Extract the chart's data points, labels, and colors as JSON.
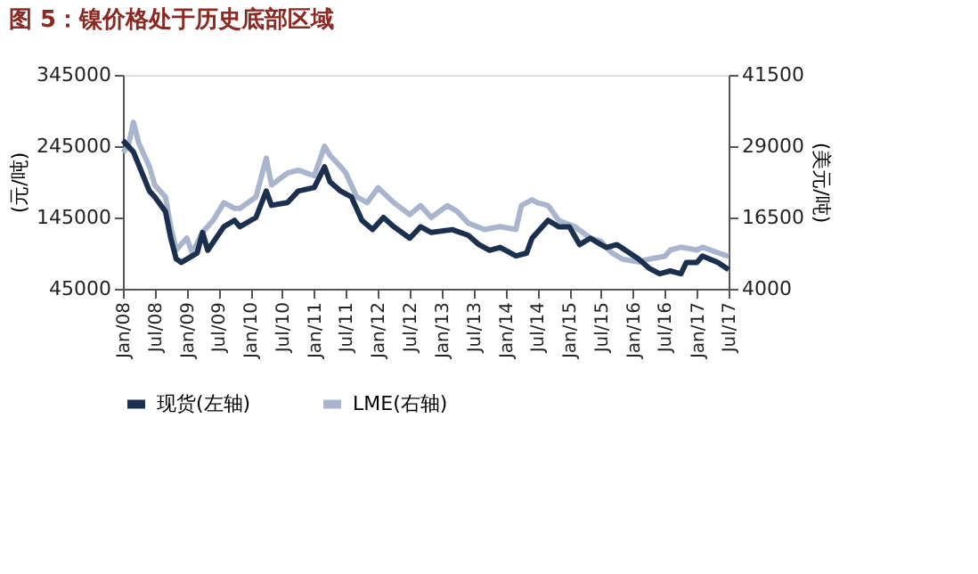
{
  "chart_data": {
    "type": "line",
    "title": "图 5：镍价格处于历史底部区域",
    "ylabel": "(元/吨)",
    "y2label": "(美元/吨)",
    "xlim": [
      "2008-01",
      "2017-07"
    ],
    "xticks": [
      {
        "value": "2008-01",
        "label": "Jan/08"
      },
      {
        "value": "2008-07",
        "label": "Jul/08"
      },
      {
        "value": "2009-01",
        "label": "Jan/09"
      },
      {
        "value": "2009-07",
        "label": "Jul/09"
      },
      {
        "value": "2010-01",
        "label": "Jan/10"
      },
      {
        "value": "2010-07",
        "label": "Jul/10"
      },
      {
        "value": "2011-01",
        "label": "Jan/11"
      },
      {
        "value": "2011-07",
        "label": "Jul/11"
      },
      {
        "value": "2012-01",
        "label": "Jan/12"
      },
      {
        "value": "2012-07",
        "label": "Jul/12"
      },
      {
        "value": "2013-01",
        "label": "Jan/13"
      },
      {
        "value": "2013-07",
        "label": "Jul/13"
      },
      {
        "value": "2014-01",
        "label": "Jan/14"
      },
      {
        "value": "2014-07",
        "label": "Jul/14"
      },
      {
        "value": "2015-01",
        "label": "Jan/15"
      },
      {
        "value": "2015-07",
        "label": "Jul/15"
      },
      {
        "value": "2016-01",
        "label": "Jan/16"
      },
      {
        "value": "2016-07",
        "label": "Jul/16"
      },
      {
        "value": "2017-01",
        "label": "Jan/17"
      },
      {
        "value": "2017-07",
        "label": "Jul/17"
      }
    ],
    "ylim": [
      45000,
      345000
    ],
    "yticks": [
      45000,
      145000,
      245000,
      345000
    ],
    "y2lim": [
      4000,
      41500
    ],
    "y2ticks": [
      4000,
      16500,
      29000,
      41500
    ],
    "grid": false,
    "legend": "bottom",
    "line_style": "solid",
    "series": [
      {
        "name": "现货(左轴)",
        "color": "#1b2f4e",
        "x": [
          "2008-01",
          "2008-03",
          "2008-06",
          "2008-07",
          "2008-09",
          "2008-10",
          "2008-11",
          "2008-12",
          "2009-02",
          "2009-03",
          "2009-04",
          "2009-05",
          "2009-08",
          "2009-10",
          "2009-11",
          "2010-02",
          "2010-04",
          "2010-05",
          "2010-08",
          "2010-10",
          "2011-01",
          "2011-03",
          "2011-04",
          "2011-06",
          "2011-08",
          "2011-10",
          "2011-12",
          "2012-02",
          "2012-04",
          "2012-07",
          "2012-09",
          "2012-11",
          "2013-03",
          "2013-06",
          "2013-08",
          "2013-10",
          "2013-12",
          "2014-03",
          "2014-05",
          "2014-06",
          "2014-09",
          "2014-11",
          "2015-01",
          "2015-03",
          "2015-05",
          "2015-07",
          "2015-08",
          "2015-10",
          "2016-02",
          "2016-04",
          "2016-06",
          "2016-08",
          "2016-10",
          "2016-11",
          "2017-01",
          "2017-02",
          "2017-05",
          "2017-07"
        ],
        "values": [
          253000,
          237000,
          182000,
          174000,
          153000,
          116000,
          87000,
          82000,
          91000,
          95000,
          124000,
          99000,
          132000,
          141000,
          132000,
          145000,
          182000,
          162000,
          166000,
          182000,
          187000,
          216000,
          195000,
          182000,
          174000,
          141000,
          128000,
          145000,
          132000,
          116000,
          132000,
          124000,
          128000,
          120000,
          107000,
          99000,
          103000,
          91000,
          95000,
          116000,
          141000,
          132000,
          132000,
          107000,
          116000,
          107000,
          103000,
          107000,
          87000,
          74000,
          66000,
          70000,
          66000,
          82000,
          82000,
          91000,
          82000,
          72000
        ]
      },
      {
        "name": "LME(右轴)",
        "color": "#a9b5cc",
        "axis": "y2",
        "x": [
          "2008-01",
          "2008-02",
          "2008-03",
          "2008-04",
          "2008-06",
          "2008-07",
          "2008-09",
          "2008-10",
          "2008-11",
          "2009-01",
          "2009-02",
          "2009-04",
          "2009-06",
          "2009-08",
          "2009-10",
          "2009-11",
          "2010-02",
          "2010-04",
          "2010-05",
          "2010-08",
          "2010-10",
          "2011-01",
          "2011-03",
          "2011-04",
          "2011-06",
          "2011-07",
          "2011-09",
          "2011-11",
          "2012-01",
          "2012-04",
          "2012-07",
          "2012-09",
          "2012-11",
          "2013-02",
          "2013-04",
          "2013-06",
          "2013-09",
          "2013-12",
          "2014-03",
          "2014-04",
          "2014-06",
          "2014-07",
          "2014-09",
          "2014-11",
          "2015-02",
          "2015-05",
          "2015-07",
          "2015-09",
          "2015-11",
          "2016-02",
          "2016-04",
          "2016-07",
          "2016-08",
          "2016-10",
          "2017-01",
          "2017-02",
          "2017-05",
          "2017-07"
        ],
        "values": [
          27900,
          29000,
          33200,
          29500,
          25400,
          22200,
          20100,
          14900,
          10800,
          12900,
          10300,
          13900,
          16000,
          19100,
          18100,
          18100,
          20100,
          26900,
          22200,
          24300,
          24800,
          23800,
          29000,
          27400,
          25400,
          24300,
          20100,
          19100,
          21700,
          19100,
          17000,
          18600,
          16500,
          18600,
          17500,
          15500,
          14400,
          14900,
          14400,
          18600,
          19600,
          19100,
          18600,
          16000,
          14900,
          12900,
          12300,
          10300,
          9200,
          8700,
          9200,
          9700,
          10800,
          11300,
          10800,
          11300,
          10300,
          9700
        ]
      }
    ]
  }
}
